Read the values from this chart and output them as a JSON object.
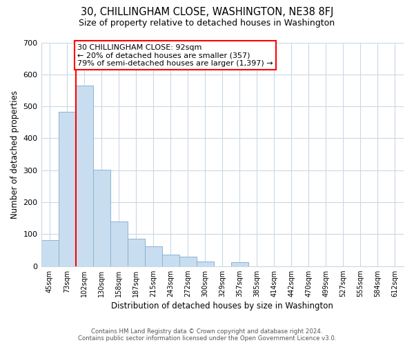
{
  "title": "30, CHILLINGHAM CLOSE, WASHINGTON, NE38 8FJ",
  "subtitle": "Size of property relative to detached houses in Washington",
  "xlabel": "Distribution of detached houses by size in Washington",
  "ylabel": "Number of detached properties",
  "bar_labels": [
    "45sqm",
    "73sqm",
    "102sqm",
    "130sqm",
    "158sqm",
    "187sqm",
    "215sqm",
    "243sqm",
    "272sqm",
    "300sqm",
    "329sqm",
    "357sqm",
    "385sqm",
    "414sqm",
    "442sqm",
    "470sqm",
    "499sqm",
    "527sqm",
    "555sqm",
    "584sqm",
    "612sqm"
  ],
  "bar_values": [
    82,
    483,
    565,
    302,
    139,
    85,
    63,
    35,
    30,
    14,
    0,
    12,
    0,
    0,
    0,
    0,
    0,
    0,
    0,
    0,
    0
  ],
  "bar_color": "#c8ddf0",
  "bar_edge_color": "#8ab4d4",
  "property_line_idx": 2,
  "property_line_color": "red",
  "annotation_title": "30 CHILLINGHAM CLOSE: 92sqm",
  "annotation_line1": "← 20% of detached houses are smaller (357)",
  "annotation_line2": "79% of semi-detached houses are larger (1,397) →",
  "annotation_box_color": "white",
  "annotation_box_edge": "red",
  "ylim": [
    0,
    700
  ],
  "yticks": [
    0,
    100,
    200,
    300,
    400,
    500,
    600,
    700
  ],
  "footer_line1": "Contains HM Land Registry data © Crown copyright and database right 2024.",
  "footer_line2": "Contains public sector information licensed under the Open Government Licence v3.0.",
  "bg_color": "white",
  "grid_color": "#c8d8e8"
}
